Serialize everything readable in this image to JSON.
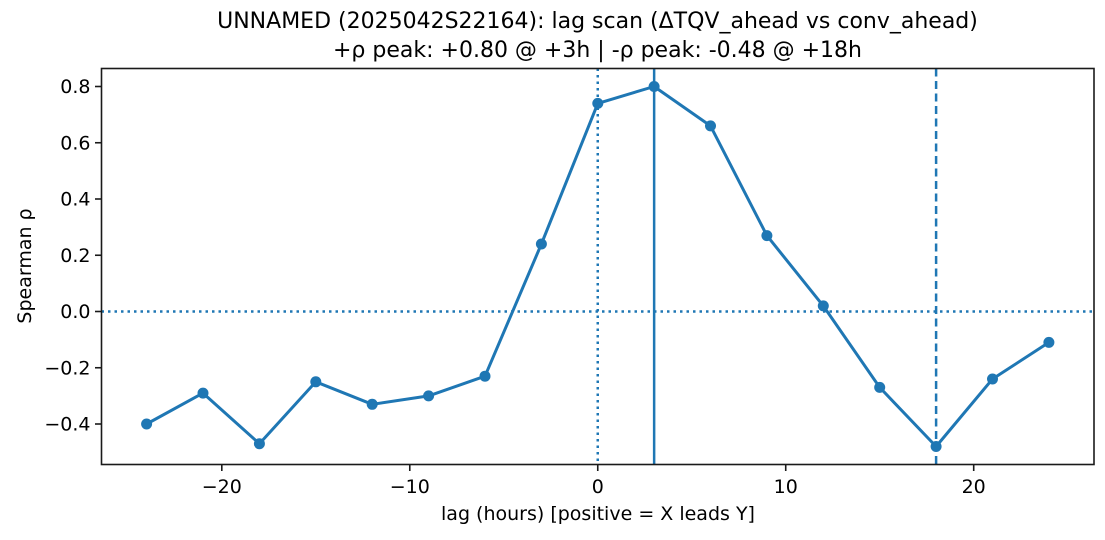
{
  "title": {
    "line1": "UNNAMED (2025042S22164): lag scan (ΔTQV_ahead vs conv_ahead)",
    "line2": "+ρ peak: +0.80 @ +3h | -ρ peak: -0.48 @ +18h"
  },
  "chart_data": {
    "type": "line",
    "title": "UNNAMED (2025042S22164): lag scan (ΔTQV_ahead vs conv_ahead)",
    "subtitle": "+ρ peak: +0.80 @ +3h | -ρ peak: -0.48 @ +18h",
    "xlabel": "lag (hours) [positive = X leads Y]",
    "ylabel": "Spearman ρ",
    "x": [
      -24,
      -21,
      -18,
      -15,
      -12,
      -9,
      -6,
      -3,
      0,
      3,
      6,
      9,
      12,
      15,
      18,
      21,
      24
    ],
    "y": [
      -0.4,
      -0.29,
      -0.47,
      -0.25,
      -0.33,
      -0.3,
      -0.23,
      0.24,
      0.74,
      0.8,
      0.66,
      0.27,
      0.02,
      -0.27,
      -0.48,
      -0.24,
      -0.11
    ],
    "xlim": [
      -26.4,
      26.4
    ],
    "ylim": [
      -0.544,
      0.864
    ],
    "xticks": [
      -20,
      -10,
      0,
      10,
      20
    ],
    "xtick_labels": [
      "−20",
      "−10",
      "0",
      "10",
      "20"
    ],
    "yticks": [
      0.8,
      0.6,
      0.4,
      0.2,
      0.0,
      -0.2,
      -0.4
    ],
    "ytick_labels": [
      "0.8",
      "0.6",
      "0.4",
      "0.2",
      "0.0",
      "−0.2",
      "−0.4"
    ],
    "line_color": "#1f77b4",
    "marker": "circle",
    "grid": false,
    "legend": false,
    "peaks": {
      "positive_rho": "+0.80",
      "positive_lag": "+3h",
      "negative_rho": "-0.48",
      "negative_lag": "+18h"
    },
    "reference_lines": [
      {
        "orientation": "horizontal",
        "value": 0.0,
        "style": "dotted",
        "color": "#1f77b4"
      },
      {
        "orientation": "vertical",
        "value": 0,
        "style": "dotted",
        "color": "#1f77b4"
      },
      {
        "orientation": "vertical",
        "value": 3,
        "style": "solid",
        "color": "#1f77b4"
      },
      {
        "orientation": "vertical",
        "value": 18,
        "style": "dashed",
        "color": "#1f77b4"
      }
    ]
  }
}
